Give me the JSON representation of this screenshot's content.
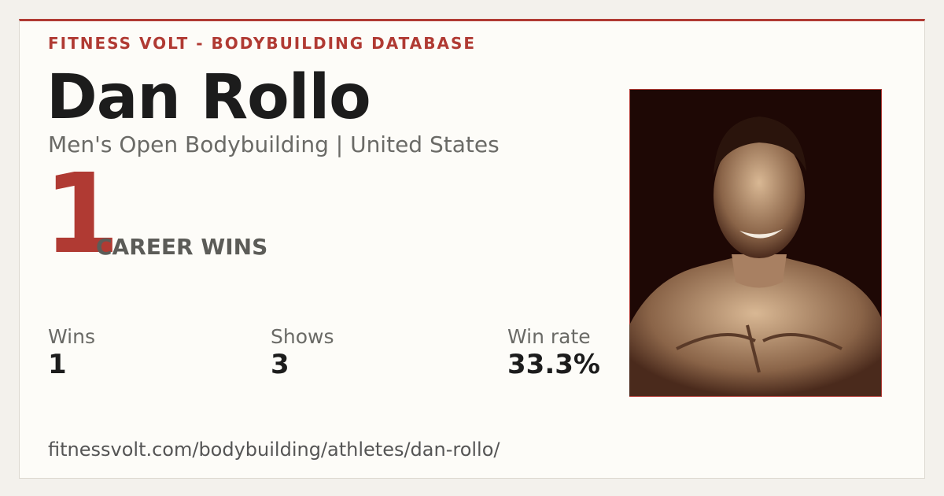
{
  "header": {
    "brand": "FITNESS VOLT - BODYBUILDING DATABASE"
  },
  "athlete": {
    "name": "Dan Rollo",
    "subtitle": "Men's Open Bodybuilding | United States"
  },
  "highlight": {
    "number": "1",
    "label": "CAREER WINS"
  },
  "stats": [
    {
      "label": "Wins",
      "value": "1"
    },
    {
      "label": "Shows",
      "value": "3"
    },
    {
      "label": "Win rate",
      "value": "33.3%"
    }
  ],
  "footer": {
    "url": "fitnessvolt.com/bodybuilding/athletes/dan-rollo/"
  }
}
